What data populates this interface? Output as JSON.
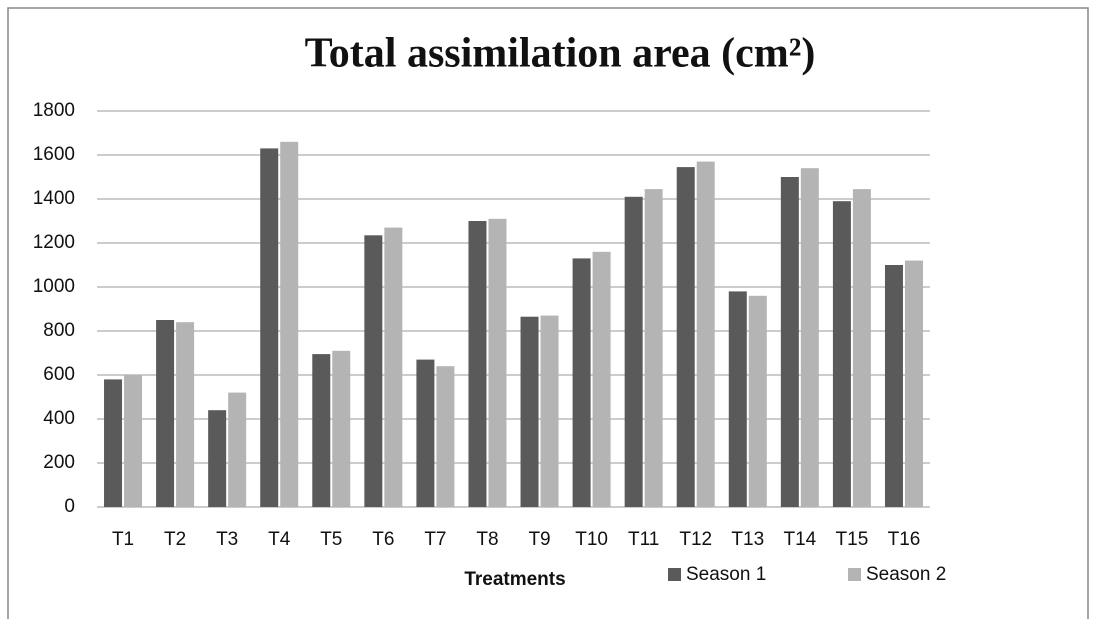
{
  "chart_data": {
    "type": "bar",
    "title": "Total assimilation area (cm²)",
    "x_label": "Treatments",
    "categories": [
      "T1",
      "T2",
      "T3",
      "T4",
      "T5",
      "T6",
      "T7",
      "T8",
      "T9",
      "T10",
      "T11",
      "T12",
      "T13",
      "T14",
      "T15",
      "T16"
    ],
    "series": [
      {
        "name": "Season 1",
        "color": "#5a5a5a",
        "values": [
          580,
          850,
          440,
          1630,
          695,
          1235,
          670,
          1300,
          865,
          1130,
          1410,
          1545,
          980,
          1500,
          1390,
          1100
        ]
      },
      {
        "name": "Season 2",
        "color": "#b4b4b4",
        "values": [
          600,
          840,
          520,
          1660,
          710,
          1270,
          640,
          1310,
          870,
          1160,
          1445,
          1570,
          960,
          1540,
          1445,
          1120
        ]
      }
    ],
    "ylim": [
      0,
      1800
    ],
    "yticks": [
      0,
      200,
      400,
      600,
      800,
      1000,
      1200,
      1400,
      1600,
      1800
    ],
    "grid": true,
    "legend": "bottom"
  }
}
